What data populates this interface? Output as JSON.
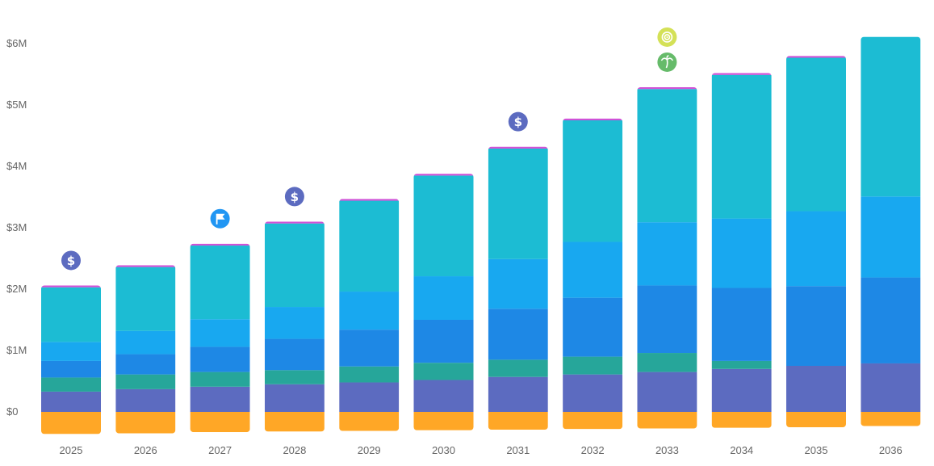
{
  "chart_data": {
    "type": "bar",
    "stacked": true,
    "categories": [
      "2025",
      "2026",
      "2027",
      "2028",
      "2029",
      "2030",
      "2031",
      "2032",
      "2033",
      "2034",
      "2035",
      "2036"
    ],
    "y_ticks": [
      "$0",
      "$1M",
      "$2M",
      "$3M",
      "$4M",
      "$5M",
      "$6M"
    ],
    "ylim": [
      -0.38,
      6.2
    ],
    "grid": false,
    "legend": "none",
    "negative_series": {
      "color": "#FFA726",
      "values": [
        -0.36,
        -0.35,
        -0.33,
        -0.32,
        -0.31,
        -0.3,
        -0.29,
        -0.28,
        -0.27,
        -0.26,
        -0.25,
        -0.23
      ]
    },
    "series": [
      {
        "color": "#5C6BC0",
        "values": [
          0.33,
          0.37,
          0.41,
          0.45,
          0.48,
          0.52,
          0.57,
          0.61,
          0.65,
          0.7,
          0.75,
          0.79
        ]
      },
      {
        "color": "#26A69A",
        "values": [
          0.23,
          0.24,
          0.24,
          0.23,
          0.26,
          0.28,
          0.28,
          0.29,
          0.31,
          0.13,
          0.0,
          0.0
        ]
      },
      {
        "color": "#1E88E5",
        "values": [
          0.27,
          0.33,
          0.41,
          0.51,
          0.6,
          0.7,
          0.83,
          0.96,
          1.1,
          1.19,
          1.3,
          1.4
        ]
      },
      {
        "color": "#18A8F0",
        "values": [
          0.31,
          0.38,
          0.45,
          0.52,
          0.62,
          0.71,
          0.81,
          0.91,
          1.03,
          1.13,
          1.22,
          1.32
        ]
      },
      {
        "color": "#1CBCD3",
        "values": [
          0.89,
          1.04,
          1.2,
          1.36,
          1.48,
          1.64,
          1.8,
          1.98,
          2.17,
          2.34,
          2.5,
          2.6
        ]
      },
      {
        "color": "#D052D7",
        "values": [
          0.03,
          0.03,
          0.03,
          0.03,
          0.03,
          0.03,
          0.03,
          0.03,
          0.03,
          0.03,
          0.03,
          0.0
        ]
      }
    ],
    "markers": [
      {
        "category": "2025",
        "icons": [
          {
            "icon": "dollar-icon",
            "color": "#5C6BC0"
          }
        ]
      },
      {
        "category": "2027",
        "icons": [
          {
            "icon": "flag-icon",
            "color": "#2196F3"
          }
        ]
      },
      {
        "category": "2028",
        "icons": [
          {
            "icon": "dollar-icon",
            "color": "#5C6BC0"
          }
        ]
      },
      {
        "category": "2031",
        "icons": [
          {
            "icon": "dollar-icon",
            "color": "#5C6BC0"
          }
        ]
      },
      {
        "category": "2033",
        "icons": [
          {
            "icon": "palm-tree-icon",
            "color": "#66BB6A"
          },
          {
            "icon": "target-icon",
            "color": "#D4E157"
          }
        ]
      }
    ]
  }
}
